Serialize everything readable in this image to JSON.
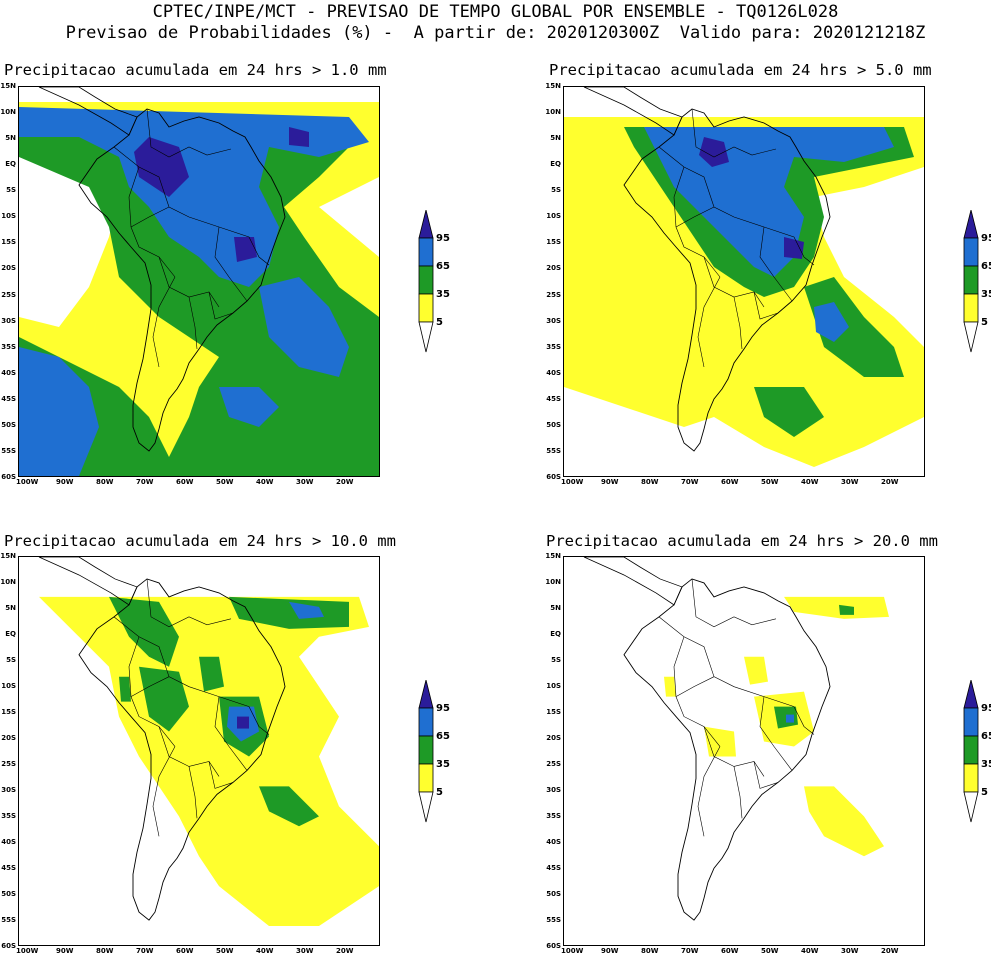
{
  "header": {
    "line1": "CPTEC/INPE/MCT - PREVISAO DE TEMPO GLOBAL POR ENSEMBLE - TQ0126L028",
    "line2": "Previsao de Probabilidades (%) -  A partir de: 2020120300Z  Valido para: 2020121218Z"
  },
  "panels": [
    {
      "title": "Precipitacao acumulada em 24 hrs > 1.0 mm"
    },
    {
      "title": "Precipitacao acumulada em 24 hrs > 5.0 mm"
    },
    {
      "title": "Precipitacao acumulada em 24 hrs > 10.0 mm"
    },
    {
      "title": "Precipitacao acumulada em 24 hrs > 20.0 mm"
    }
  ],
  "lat_labels": [
    "15N",
    "10N",
    "5N",
    "EQ",
    "5S",
    "10S",
    "15S",
    "20S",
    "25S",
    "30S",
    "35S",
    "40S",
    "45S",
    "50S",
    "55S",
    "60S"
  ],
  "lon_labels": [
    "100W",
    "90W",
    "80W",
    "70W",
    "60W",
    "50W",
    "40W",
    "30W",
    "20W"
  ],
  "legend": {
    "labels": [
      "95",
      "65",
      "35",
      "5"
    ],
    "colors": {
      "c95": "#2b1c9a",
      "c65": "#1f6fd1",
      "c35": "#1e9a26",
      "c5": "#ffff2e"
    }
  }
}
